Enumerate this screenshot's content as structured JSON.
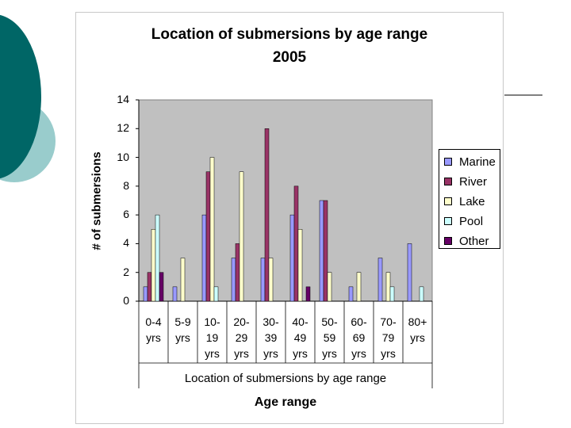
{
  "chart_data": {
    "type": "bar",
    "title": "Location of submersions by age range",
    "subtitle": "2005",
    "ylabel": "# of submersions",
    "xlabel_inner": "Location of submersions by age range",
    "xlabel": "Age range",
    "ylim": [
      0,
      14
    ],
    "yticks": [
      "0",
      "2",
      "4",
      "6",
      "8",
      "10",
      "12",
      "14"
    ],
    "grid": false,
    "legend_position": "right",
    "categories": [
      [
        "0-4",
        "yrs"
      ],
      [
        "5-9",
        "yrs"
      ],
      [
        "10-",
        "19",
        "yrs"
      ],
      [
        "20-",
        "29",
        "yrs"
      ],
      [
        "30-",
        "39",
        "yrs"
      ],
      [
        "40-",
        "49",
        "yrs"
      ],
      [
        "50-",
        "59",
        "yrs"
      ],
      [
        "60-",
        "69",
        "yrs"
      ],
      [
        "70-",
        "79",
        "yrs"
      ],
      [
        "80+",
        "yrs"
      ]
    ],
    "series": [
      {
        "name": "Marine",
        "color": "#9999ff",
        "values": [
          1,
          1,
          6,
          3,
          3,
          6,
          7,
          1,
          3,
          4
        ]
      },
      {
        "name": "River",
        "color": "#993366",
        "values": [
          2,
          0,
          9,
          4,
          12,
          8,
          7,
          0,
          0,
          0
        ]
      },
      {
        "name": "Lake",
        "color": "#ffffcc",
        "values": [
          5,
          3,
          10,
          9,
          3,
          5,
          2,
          2,
          2,
          0
        ]
      },
      {
        "name": "Pool",
        "color": "#ccffff",
        "values": [
          6,
          0,
          1,
          0,
          0,
          0,
          0,
          0,
          1,
          1
        ]
      },
      {
        "name": "Other",
        "color": "#660066",
        "values": [
          2,
          0,
          0,
          0,
          0,
          1,
          0,
          0,
          0,
          0
        ]
      }
    ],
    "plot_background": "#c0c0c0"
  },
  "decor": {
    "circle_dark": "#006666",
    "circle_light": "#99cccc"
  }
}
